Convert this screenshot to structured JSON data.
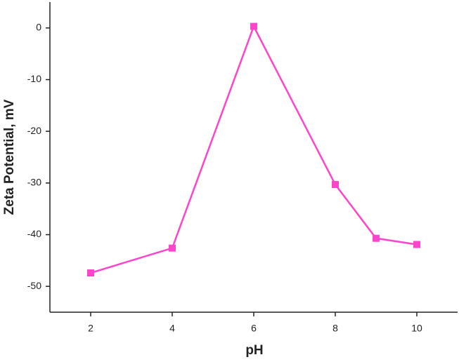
{
  "chart_data": {
    "type": "line",
    "x_label": "pH",
    "y_label": "Zeta Potential, mV",
    "x": [
      2,
      4,
      6,
      8,
      9,
      10
    ],
    "series": [
      {
        "color": "#ff44cc",
        "values": [
          -47.4,
          -42.6,
          0.3,
          -30.3,
          -40.7,
          -41.9
        ]
      }
    ],
    "xlim": [
      1,
      11
    ],
    "xticks": [
      2,
      4,
      6,
      8,
      10
    ],
    "ylim": [
      -55,
      5
    ],
    "yticks": [
      -50,
      -40,
      -30,
      -20,
      -10,
      0
    ],
    "grid": false,
    "marker": "square"
  }
}
